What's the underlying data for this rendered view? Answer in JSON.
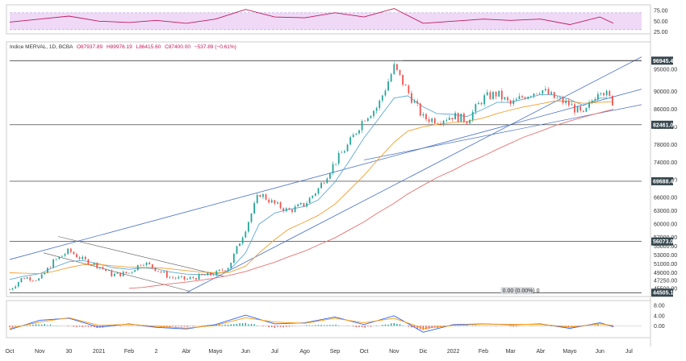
{
  "header": {
    "symbol": "Indice MERVAL, 1D, BCBA",
    "open": "O87937.89",
    "high": "H89976.19",
    "low": "L86415.60",
    "close": "C87400.00",
    "change": "−537.89 (−0.61%)"
  },
  "colors": {
    "bull": "#26a69a",
    "bear": "#ef5350",
    "ma_fast": "#5fa8d3",
    "ma_mid": "#f0a030",
    "ma_slow": "#e57373",
    "trend_blue": "#4a72c4",
    "rsi_line": "#c2185b",
    "rsi_band": "#efd9f7",
    "macd_line": "#2962ff",
    "signal_line": "#ff9800",
    "level_label_bg": "#37474f",
    "hist_pos": "#26a69a",
    "hist_neg": "#ef5350"
  },
  "chart_data": [
    {
      "type": "line",
      "panel": "rsi",
      "ticks": [
        "75.00",
        "50.00",
        "25.00"
      ],
      "ylim": [
        20,
        85
      ],
      "band": [
        30,
        70
      ],
      "series": [
        {
          "x": [
            "2020-10-01",
            "2020-11-01",
            "2020-12-01",
            "2021-01-01",
            "2021-02-01",
            "2021-03-01",
            "2021-04-01",
            "2021-05-01",
            "2021-06-01",
            "2021-07-01",
            "2021-08-01",
            "2021-09-01",
            "2021-10-01",
            "2021-11-01",
            "2021-12-01",
            "2022-01-01",
            "2022-02-01",
            "2022-03-01",
            "2022-04-01",
            "2022-05-01",
            "2022-06-01",
            "2022-06-15"
          ],
          "values": [
            48,
            55,
            62,
            50,
            47,
            52,
            45,
            55,
            78,
            60,
            58,
            70,
            60,
            80,
            45,
            50,
            55,
            52,
            55,
            42,
            60,
            45
          ]
        }
      ]
    },
    {
      "type": "candlestick",
      "panel": "price",
      "ticks": [
        "95000.00",
        "90000.00",
        "86000.00",
        "82000.00",
        "78000.00",
        "74000.00",
        "70000.00",
        "66000.00",
        "63000.00",
        "60000.00",
        "57000.00",
        "55000.00",
        "53000.00",
        "51000.00",
        "49000.00",
        "47250.00",
        "45500.00"
      ],
      "ylim": [
        44000,
        99000
      ],
      "x_ticks": [
        "Oct",
        "Nov",
        "30",
        "2021",
        "Feb",
        "2",
        "Abr",
        "Mayo",
        "Jun",
        "Jul",
        "Ago",
        "Sep",
        "Oct",
        "Nov",
        "Dic",
        "2022",
        "Feb",
        "Mar",
        "Abr",
        "Mayo",
        "Jun",
        "Jul"
      ],
      "levels": [
        {
          "value": "96945.48",
          "price": 96945
        },
        {
          "value": "82461.08",
          "price": 82461
        },
        {
          "value": "69688.41",
          "price": 69688
        },
        {
          "value": "56073.03",
          "price": 56073
        },
        {
          "value": "44505.12",
          "price": 44505
        }
      ],
      "measure_label": "0.00 (0.00%) 0",
      "x": [
        "2020-10-01",
        "2020-10-15",
        "2020-11-01",
        "2020-11-15",
        "2020-12-01",
        "2020-12-15",
        "2021-01-01",
        "2021-01-15",
        "2021-02-01",
        "2021-02-15",
        "2021-03-01",
        "2021-03-15",
        "2021-04-01",
        "2021-04-15",
        "2021-05-01",
        "2021-05-15",
        "2021-06-01",
        "2021-06-15",
        "2021-07-01",
        "2021-07-15",
        "2021-08-01",
        "2021-08-15",
        "2021-09-01",
        "2021-09-15",
        "2021-10-01",
        "2021-10-15",
        "2021-11-01",
        "2021-11-15",
        "2021-12-01",
        "2021-12-15",
        "2022-01-01",
        "2022-01-15",
        "2022-02-01",
        "2022-02-15",
        "2022-03-01",
        "2022-03-15",
        "2022-04-01",
        "2022-04-15",
        "2022-05-01",
        "2022-05-15",
        "2022-06-01",
        "2022-06-15"
      ],
      "close": [
        45200,
        48000,
        47500,
        51500,
        54000,
        52000,
        50500,
        48500,
        49000,
        51500,
        49800,
        48000,
        47500,
        48200,
        48800,
        50500,
        59000,
        67000,
        64500,
        63000,
        64500,
        68000,
        74000,
        78000,
        84000,
        86500,
        95500,
        90000,
        84000,
        83500,
        84500,
        83500,
        88500,
        89500,
        87000,
        89000,
        90500,
        88500,
        87000,
        84500,
        91000,
        87400
      ],
      "series": [
        {
          "name": "",
          "values": [
            47500,
            48200,
            48800,
            50200,
            51500,
            51800,
            51000,
            50200,
            49800,
            50100,
            49900,
            49200,
            48700,
            48600,
            48700,
            49500,
            53500,
            60000,
            62500,
            63300,
            64000,
            65500,
            69500,
            74000,
            79500,
            83500,
            88500,
            89000,
            86500,
            85000,
            84800,
            84300,
            86000,
            87500,
            87500,
            88300,
            89300,
            89200,
            88200,
            86800,
            88500,
            88500
          ]
        },
        {
          "name": "",
          "values": [
            49000,
            48900,
            48800,
            49300,
            50200,
            50800,
            50900,
            50600,
            50300,
            50200,
            50200,
            49900,
            49500,
            49200,
            49000,
            49100,
            50500,
            53500,
            56500,
            58800,
            60500,
            62000,
            64500,
            67500,
            71000,
            74500,
            78500,
            81000,
            82000,
            82500,
            83000,
            83200,
            84000,
            85000,
            85800,
            86500,
            87200,
            87800,
            87800,
            87300,
            87500,
            87700
          ]
        },
        {
          "name": "",
          "values": [
            null,
            null,
            null,
            null,
            null,
            null,
            null,
            null,
            45500,
            45700,
            46100,
            46500,
            46900,
            47300,
            47800,
            48400,
            49300,
            50300,
            51400,
            52600,
            53900,
            55300,
            56900,
            58600,
            60500,
            62500,
            64700,
            66800,
            68800,
            70500,
            72200,
            73800,
            75400,
            76900,
            78300,
            79700,
            81000,
            82200,
            83300,
            84200,
            85200,
            86000
          ]
        }
      ]
    },
    {
      "type": "bar",
      "panel": "macd",
      "ticks": [
        "8.00",
        "4.00",
        "0.00"
      ],
      "ylim": [
        -4,
        9
      ],
      "x": [
        "2020-10-01",
        "2020-11-01",
        "2020-12-01",
        "2021-01-01",
        "2021-02-01",
        "2021-03-01",
        "2021-04-01",
        "2021-05-01",
        "2021-06-01",
        "2021-07-01",
        "2021-08-01",
        "2021-09-01",
        "2021-10-01",
        "2021-11-01",
        "2021-12-01",
        "2022-01-01",
        "2022-02-01",
        "2022-03-01",
        "2022-04-01",
        "2022-05-01",
        "2022-06-01",
        "2022-06-15"
      ],
      "series": [
        {
          "name": "",
          "values": [
            -1.5,
            2.2,
            3.0,
            -0.5,
            0.8,
            -0.6,
            -1.2,
            0.5,
            4.2,
            0.8,
            1.2,
            3.5,
            0.5,
            4.0,
            -2.5,
            0.5,
            0.8,
            0.4,
            0.8,
            -1.0,
            1.2,
            -0.3
          ]
        },
        {
          "name": "",
          "values": [
            -1.0,
            1.5,
            3.2,
            0.2,
            0.6,
            -0.2,
            -0.9,
            0.2,
            3.2,
            1.5,
            1.0,
            3.0,
            1.2,
            3.0,
            -1.0,
            0.2,
            0.7,
            0.6,
            0.6,
            -0.5,
            0.8,
            0.1
          ]
        },
        {
          "name": "",
          "values": [
            -0.5,
            0.7,
            -0.2,
            -0.7,
            0.2,
            -0.4,
            -0.3,
            0.3,
            1.0,
            -0.7,
            0.2,
            0.5,
            -0.7,
            1.0,
            -1.5,
            0.3,
            0.1,
            -0.2,
            0.2,
            -0.5,
            0.4,
            -0.4
          ]
        }
      ]
    }
  ]
}
